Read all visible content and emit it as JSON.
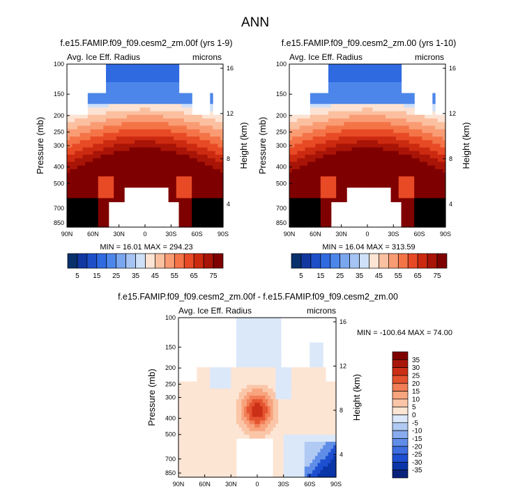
{
  "page_title": "ANN",
  "colors": {
    "diverging": [
      "#08306b",
      "#1237a0",
      "#1f4fc8",
      "#2f6ae0",
      "#4d86ea",
      "#7aa6ef",
      "#a5c4f4",
      "#cde0f8",
      "#fde3d3",
      "#fbc0a0",
      "#f99c74",
      "#f47448",
      "#e84a26",
      "#cc2a10",
      "#a81407",
      "#7f0000"
    ],
    "diff": [
      "#08217a",
      "#0a35a8",
      "#1d4fd0",
      "#3d6ee0",
      "#5f8de8",
      "#88acef",
      "#b1caf4",
      "#dbe8f9",
      "#fde5d4",
      "#fbc6a8",
      "#f8a47e",
      "#f17e56",
      "#e4532f",
      "#cb3017",
      "#a9170a",
      "#7f0000"
    ],
    "blank": "#ffffff"
  },
  "chart_data": [
    {
      "type": "heatmap",
      "title": "f.e15.FAMIP.f09_f09.cesm2_zm.00f (yrs 1-9)",
      "left_label": "Avg. Ice Eff. Radius",
      "right_label": "microns",
      "ylabel": "Pressure (mb)",
      "ylabel2": "Height (km)",
      "x_ticks": [
        "90N",
        "60N",
        "30N",
        "0",
        "30S",
        "60S",
        "90S"
      ],
      "y_ticks": [
        "100",
        "150",
        "200",
        "250",
        "300",
        "400",
        "500",
        "700",
        "850"
      ],
      "y2_ticks": [
        "16",
        "12",
        "8",
        "4"
      ],
      "stats": "MIN = 16.01   MAX = 294.23",
      "field_max_at_equator": 294.23,
      "field_min_top": 16.01
    },
    {
      "type": "heatmap",
      "title": "f.e15.FAMIP.f09_f09.cesm2_zm.00 (yrs 1-10)",
      "left_label": "Avg. Ice Eff. Radius",
      "right_label": "microns",
      "ylabel": "Pressure (mb)",
      "ylabel2": "Height (km)",
      "x_ticks": [
        "90N",
        "60N",
        "30N",
        "0",
        "30S",
        "60S",
        "90S"
      ],
      "y_ticks": [
        "100",
        "150",
        "200",
        "250",
        "300",
        "400",
        "500",
        "700",
        "850"
      ],
      "y2_ticks": [
        "16",
        "12",
        "8",
        "4"
      ],
      "stats": "MIN = 16.04   MAX = 313.59",
      "field_max_at_equator": 313.59,
      "field_min_top": 16.04
    },
    {
      "type": "heatmap",
      "title": "f.e15.FAMIP.f09_f09.cesm2_zm.00f - f.e15.FAMIP.f09_f09.cesm2_zm.00",
      "left_label": "Avg. Ice Eff. Radius",
      "right_label": "microns",
      "ylabel": "Pressure (mb)",
      "ylabel2": "Height (km)",
      "x_ticks": [
        "90N",
        "60N",
        "30N",
        "0",
        "30S",
        "60S",
        "90S"
      ],
      "y_ticks": [
        "100",
        "150",
        "200",
        "250",
        "300",
        "400",
        "500",
        "700",
        "850"
      ],
      "y2_ticks": [
        "16",
        "12",
        "8",
        "4"
      ],
      "stats": "MIN = -100.64   MAX =  74.00"
    }
  ],
  "colorbar_top": {
    "labels": [
      "5",
      "15",
      "25",
      "35",
      "45",
      "55",
      "65",
      "75"
    ]
  },
  "colorbar_diff": {
    "labels": [
      "35",
      "30",
      "25",
      "20",
      "15",
      "10",
      "5",
      "0",
      "-5",
      "-10",
      "-15",
      "-20",
      "-25",
      "-30",
      "-35"
    ]
  }
}
